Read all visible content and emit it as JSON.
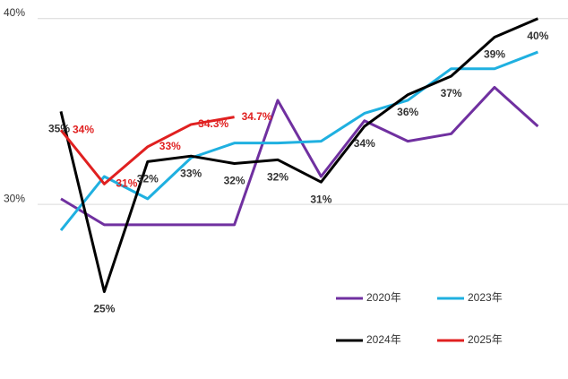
{
  "chart_data": {
    "type": "line",
    "categories": [
      null,
      null,
      null,
      null,
      null,
      null,
      null,
      null,
      null,
      null,
      null,
      null
    ],
    "ylim": [
      20.6,
      41
    ],
    "yticks": [
      {
        "value": 30,
        "label": "30%"
      },
      {
        "value": 40,
        "label": "40%"
      }
    ],
    "grid": true,
    "legend": "bottom-right",
    "series": [
      {
        "name": "2020年",
        "color": "#7030a0",
        "values": [
          30.3,
          28.9,
          28.9,
          28.9,
          28.9,
          35.6,
          31.5,
          34.5,
          33.4,
          33.8,
          36.3,
          34.2
        ]
      },
      {
        "name": "2023年",
        "color": "#1fb0e0",
        "values": [
          28.6,
          31.5,
          30.3,
          32.5,
          33.3,
          33.3,
          33.4,
          34.9,
          35.6,
          37.3,
          37.3,
          38.2
        ]
      },
      {
        "name": "2024年",
        "color": "#000000",
        "values": [
          35,
          25.3,
          32.3,
          32.6,
          32.2,
          32.4,
          31.2,
          34.2,
          35.9,
          36.9,
          39,
          40
        ],
        "value_labels": [
          "35%",
          "25%",
          "32%",
          "33%",
          "32%",
          "32%",
          "31%",
          "34%",
          "36%",
          "37%",
          "39%",
          "40%"
        ]
      },
      {
        "name": "2025年",
        "color": "#e02020",
        "values": [
          34,
          31.1,
          33.1,
          34.3,
          34.7,
          null,
          null,
          null,
          null,
          null,
          null,
          null
        ],
        "value_labels": [
          "34%",
          "31%",
          "33%",
          "34.3%",
          "34.7%",
          null,
          null,
          null,
          null,
          null,
          null,
          null
        ]
      }
    ]
  }
}
